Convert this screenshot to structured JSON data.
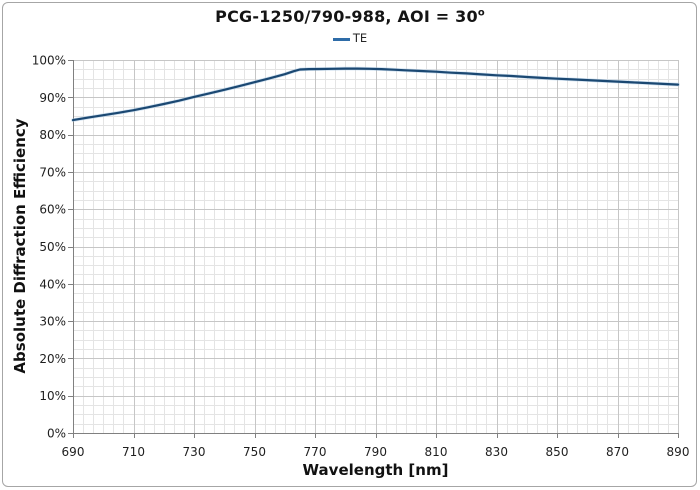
{
  "chart": {
    "title_text": "PCG-1250/790-988, AOI = 30",
    "title_degree": "o",
    "legend": [
      {
        "label": "TE",
        "color": "#2e6ca8"
      }
    ]
  },
  "chart_data": {
    "type": "line",
    "title": "PCG-1250/790-988, AOI = 30°",
    "xlabel": "Wavelength [nm]",
    "ylabel": "Absolute Diffraction Efficiency",
    "xlim": [
      690,
      890
    ],
    "ylim": [
      0,
      100
    ],
    "x_major": 20,
    "x_minor": 3.3333333,
    "y_major": 10,
    "y_minor": 2.5,
    "x_tick_labels": [
      "690",
      "710",
      "730",
      "750",
      "770",
      "790",
      "810",
      "830",
      "850",
      "870",
      "890"
    ],
    "y_tick_labels": [
      "0%",
      "10%",
      "20%",
      "30%",
      "40%",
      "50%",
      "60%",
      "70%",
      "80%",
      "90%",
      "100%"
    ],
    "y_tick_suffix": "%",
    "grid": "major+minor",
    "legend_position": "top-center",
    "series": [
      {
        "name": "TE",
        "color": "#1b4872",
        "halo_color": "#a9c9e4",
        "points": [
          [
            690,
            83.9
          ],
          [
            695,
            84.55
          ],
          [
            700,
            85.2
          ],
          [
            705,
            85.85
          ],
          [
            710,
            86.55
          ],
          [
            715,
            87.35
          ],
          [
            720,
            88.2
          ],
          [
            725,
            89.1
          ],
          [
            730,
            90.1
          ],
          [
            735,
            91.05
          ],
          [
            740,
            92.0
          ],
          [
            745,
            93.0
          ],
          [
            750,
            94.05
          ],
          [
            755,
            95.1
          ],
          [
            760,
            96.2
          ],
          [
            763,
            97.0
          ],
          [
            765,
            97.45
          ],
          [
            768,
            97.55
          ],
          [
            772,
            97.6
          ],
          [
            776,
            97.65
          ],
          [
            780,
            97.7
          ],
          [
            784,
            97.7
          ],
          [
            788,
            97.65
          ],
          [
            792,
            97.55
          ],
          [
            796,
            97.4
          ],
          [
            800,
            97.25
          ],
          [
            805,
            97.05
          ],
          [
            810,
            96.85
          ],
          [
            815,
            96.6
          ],
          [
            820,
            96.4
          ],
          [
            825,
            96.15
          ],
          [
            830,
            95.9
          ],
          [
            835,
            95.7
          ],
          [
            840,
            95.45
          ],
          [
            845,
            95.2
          ],
          [
            850,
            95.0
          ],
          [
            855,
            94.8
          ],
          [
            860,
            94.6
          ],
          [
            865,
            94.4
          ],
          [
            870,
            94.2
          ],
          [
            875,
            94.0
          ],
          [
            880,
            93.8
          ],
          [
            885,
            93.6
          ],
          [
            890,
            93.4
          ]
        ]
      }
    ]
  }
}
